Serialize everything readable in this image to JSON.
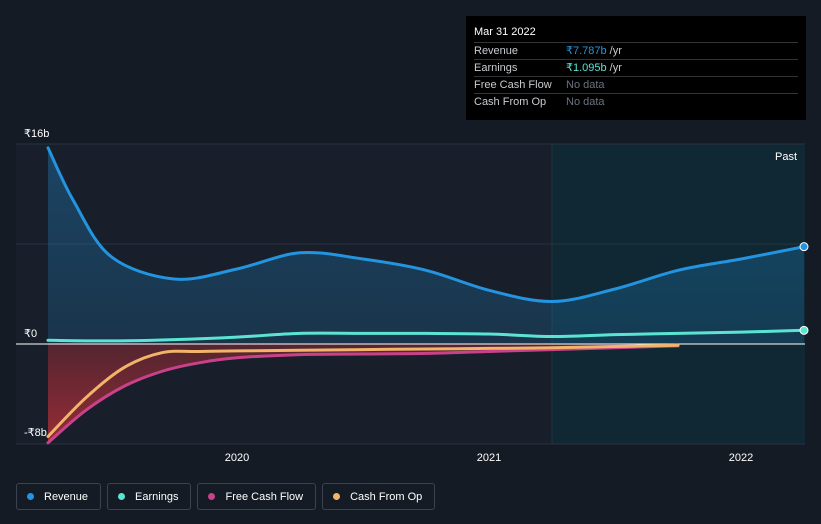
{
  "tooltip": {
    "date": "Mar 31 2022",
    "rows": [
      {
        "label": "Revenue",
        "value": "₹7.787b",
        "unit": "/yr"
      },
      {
        "label": "Earnings",
        "value": "₹1.095b",
        "unit": "/yr"
      },
      {
        "label": "Free Cash Flow",
        "value": "No data",
        "unit": ""
      },
      {
        "label": "Cash From Op",
        "value": "No data",
        "unit": ""
      }
    ]
  },
  "legend": [
    {
      "label": "Revenue",
      "color": "#2394df"
    },
    {
      "label": "Earnings",
      "color": "#5ce4d2"
    },
    {
      "label": "Free Cash Flow",
      "color": "#c8418a"
    },
    {
      "label": "Cash From Op",
      "color": "#f2b46b"
    }
  ],
  "colors": {
    "background": "#151b24",
    "revenue": "#2394df",
    "earnings": "#5ce4d2",
    "free_cash_flow": "#c8418a",
    "cash_from_op": "#f2b46b",
    "negative_fill": "#c0303a",
    "past_region": "#0f2a36"
  },
  "chart_data": {
    "type": "line",
    "title": "",
    "xlabel": "",
    "ylabel": "",
    "y_tick_labels": [
      "₹16b",
      "₹0",
      "-₹8b"
    ],
    "x_tick_labels": [
      "2020",
      "2021",
      "2022"
    ],
    "region_label": "Past",
    "ylim": [
      -8,
      16
    ],
    "x_range": [
      2019.25,
      2022.25
    ],
    "past_region_start": 2021.25,
    "series": [
      {
        "name": "Revenue",
        "color": "#2394df",
        "fill": true,
        "x": [
          2019.25,
          2019.35,
          2019.5,
          2019.75,
          2020.0,
          2020.25,
          2020.5,
          2020.75,
          2021.0,
          2021.25,
          2021.5,
          2021.75,
          2022.0,
          2022.25
        ],
        "values": [
          15.7,
          11.5,
          7.0,
          5.2,
          6.0,
          7.3,
          6.8,
          5.9,
          4.3,
          3.4,
          4.4,
          5.9,
          6.8,
          7.787
        ]
      },
      {
        "name": "Earnings",
        "color": "#5ce4d2",
        "fill": false,
        "x": [
          2019.25,
          2019.5,
          2019.75,
          2020.0,
          2020.25,
          2020.5,
          2020.75,
          2021.0,
          2021.25,
          2021.5,
          2021.75,
          2022.0,
          2022.25
        ],
        "values": [
          0.3,
          0.25,
          0.35,
          0.55,
          0.85,
          0.85,
          0.85,
          0.8,
          0.6,
          0.75,
          0.85,
          0.95,
          1.095
        ]
      },
      {
        "name": "Free Cash Flow",
        "color": "#c8418a",
        "fill": true,
        "x": [
          2019.25,
          2019.4,
          2019.55,
          2019.7,
          2019.85,
          2020.0,
          2020.25,
          2020.5,
          2020.75,
          2021.0,
          2021.25,
          2021.5,
          2021.75
        ],
        "values": [
          -7.9,
          -5.3,
          -3.4,
          -2.2,
          -1.5,
          -1.1,
          -0.85,
          -0.8,
          -0.75,
          -0.6,
          -0.45,
          -0.3,
          -0.15
        ]
      },
      {
        "name": "Cash From Op",
        "color": "#f2b46b",
        "fill": false,
        "x": [
          2019.25,
          2019.4,
          2019.55,
          2019.7,
          2019.85,
          2020.0,
          2020.25,
          2020.5,
          2020.75,
          2021.0,
          2021.25,
          2021.5,
          2021.75
        ],
        "values": [
          -7.4,
          -4.3,
          -1.9,
          -0.7,
          -0.6,
          -0.55,
          -0.5,
          -0.45,
          -0.4,
          -0.35,
          -0.3,
          -0.2,
          -0.1
        ]
      }
    ]
  }
}
